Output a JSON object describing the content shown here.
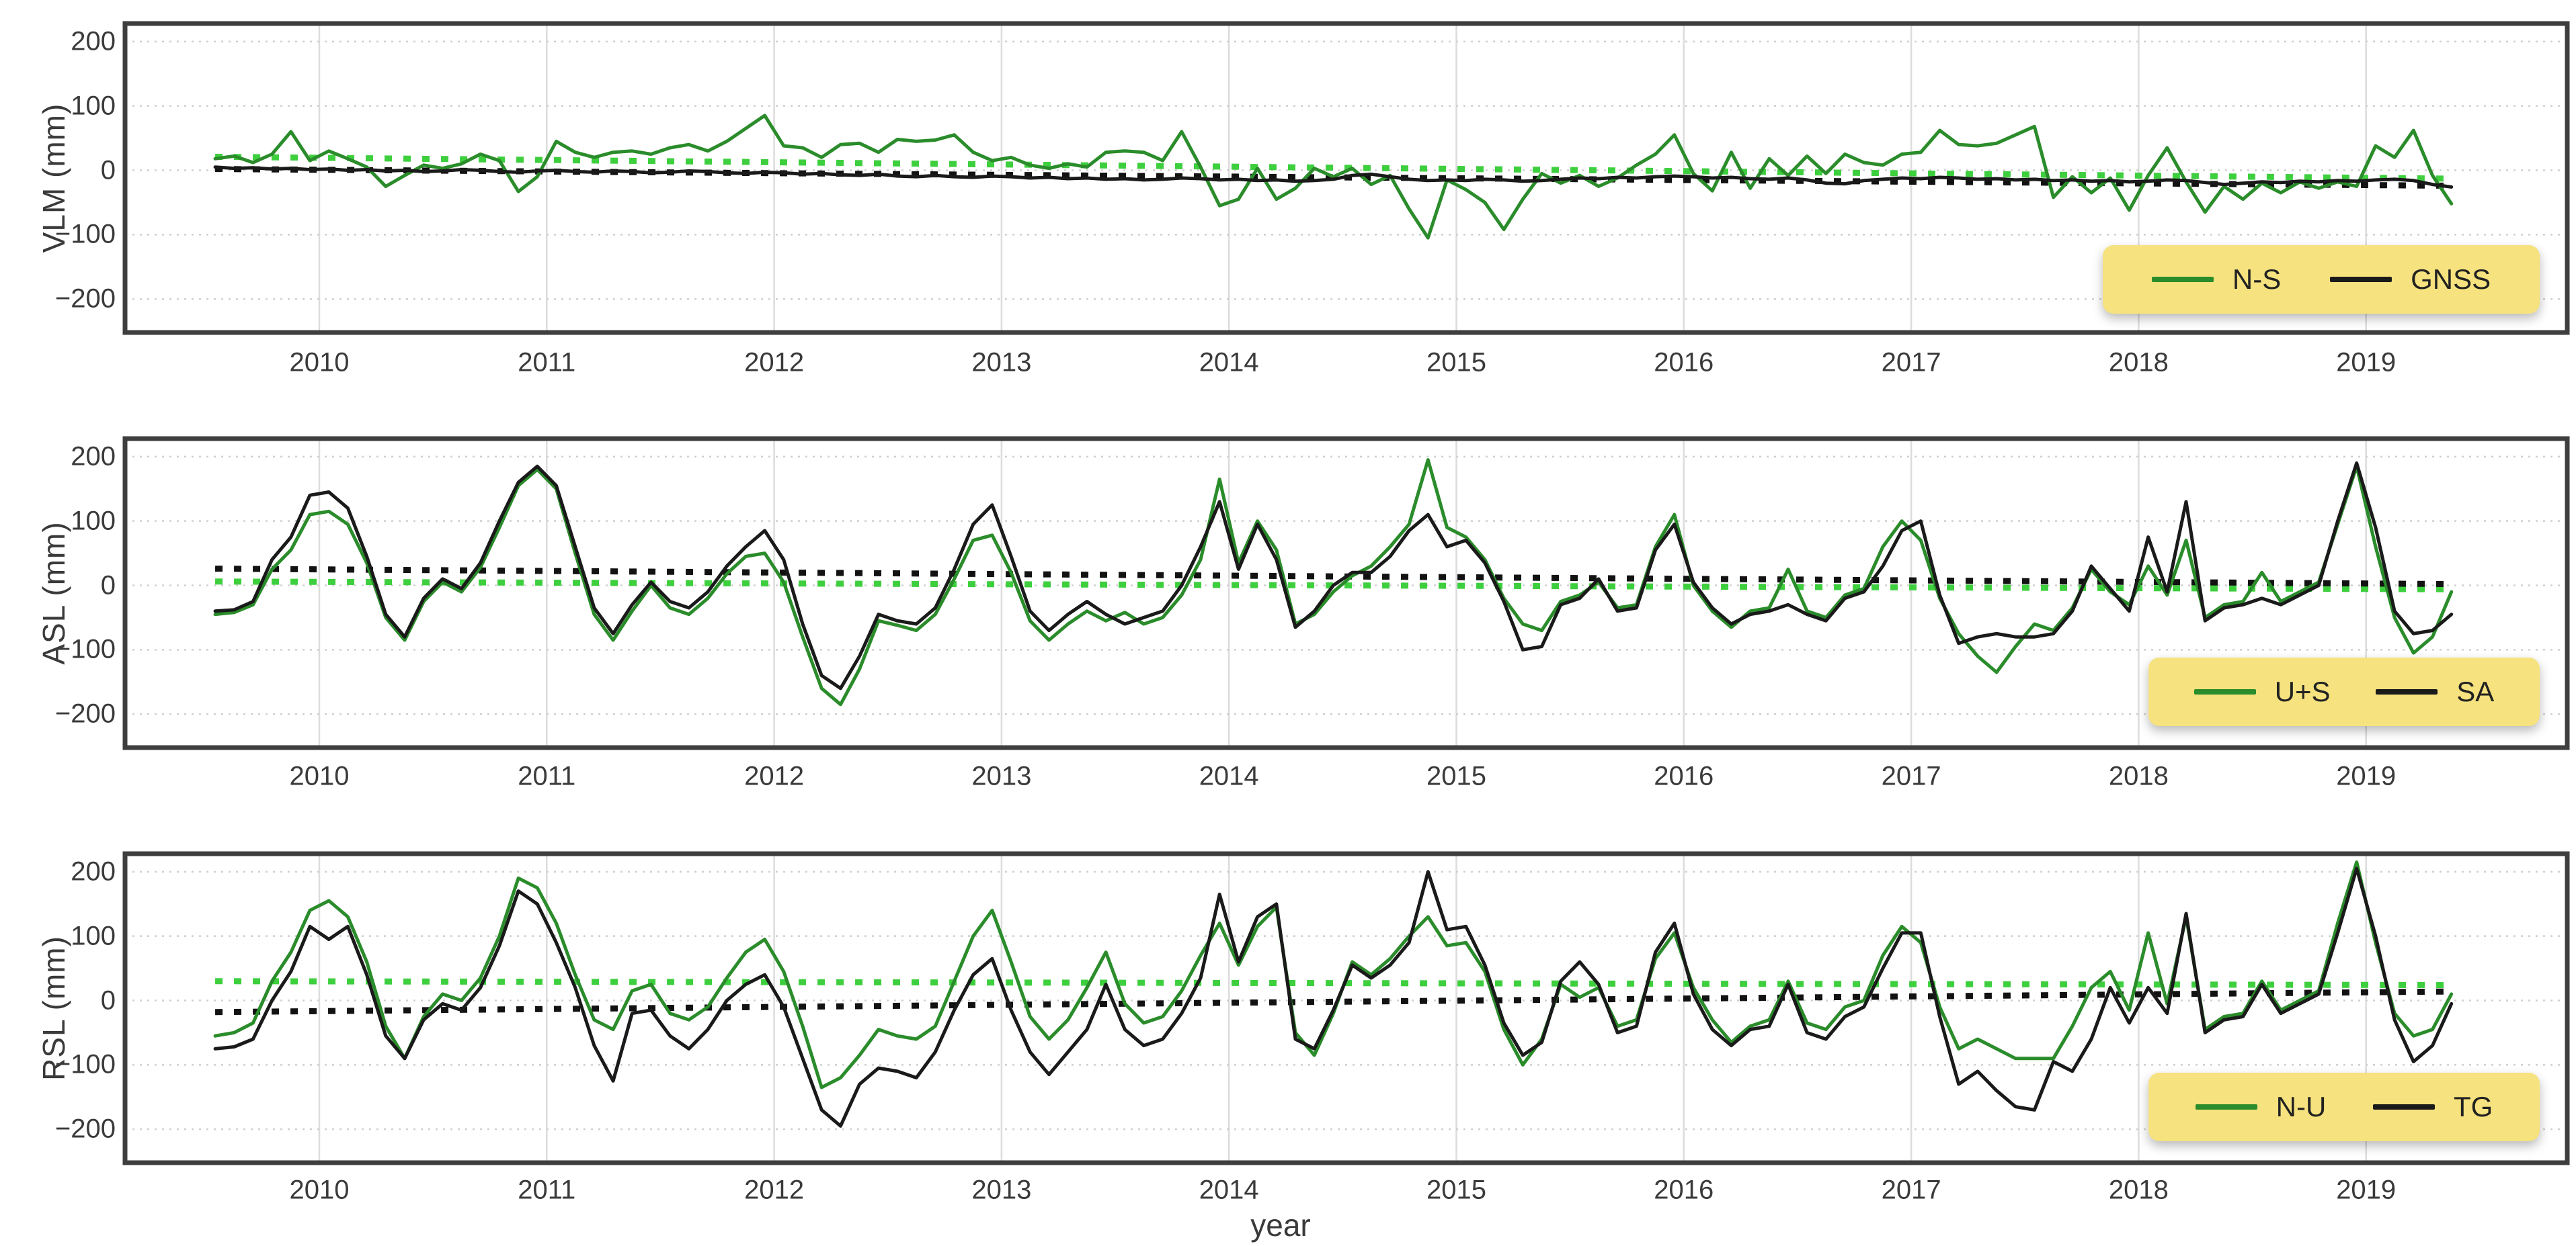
{
  "figure": {
    "xlabel": "year",
    "palette": {
      "green_line": "#2a8c2a",
      "green_trend": "#3ecf3e",
      "black_line": "#1a1a1a",
      "black_trend": "#121212",
      "grid_vertical": "#dcdcdc",
      "grid_horizontal_dotted": "#cfcfcf",
      "panel_border": "#3e3e3e",
      "legend_bg": "#f6e27e",
      "text": "#3a3a3a",
      "background": "#ffffff"
    },
    "x_start": 2009.542,
    "x_step": 0.083333,
    "n_points": 119
  },
  "chart_data": [
    {
      "type": "line",
      "ylabel": "VLM (mm)",
      "xlabel": "",
      "ylim": [
        -252,
        228
      ],
      "yticks": [
        200,
        100,
        0,
        -100,
        -200
      ],
      "ytick_labels": [
        "200",
        "100",
        "0",
        "−100",
        "−200"
      ],
      "xticks": [
        2010,
        2011,
        2012,
        2013,
        2014,
        2015,
        2016,
        2017,
        2018,
        2019
      ],
      "grid": true,
      "legend": {
        "position": "bottom-right-inside",
        "items": [
          {
            "label": "N-S",
            "color": "green_line"
          },
          {
            "label": "GNSS",
            "color": "black_line"
          }
        ]
      },
      "series": [
        {
          "name": "N-S",
          "color": "green_line",
          "values": [
            18,
            22,
            12,
            25,
            60,
            15,
            30,
            18,
            5,
            -25,
            -8,
            8,
            3,
            10,
            25,
            15,
            -33,
            -10,
            45,
            28,
            20,
            28,
            30,
            25,
            35,
            40,
            30,
            45,
            65,
            85,
            38,
            35,
            20,
            40,
            42,
            28,
            48,
            45,
            47,
            55,
            28,
            15,
            20,
            8,
            3,
            10,
            5,
            28,
            30,
            28,
            15,
            60,
            5,
            -55,
            -45,
            3,
            -45,
            -28,
            3,
            -10,
            3,
            -22,
            -8,
            -60,
            -105,
            -15,
            -30,
            -50,
            -92,
            -45,
            -5,
            -20,
            -8,
            -25,
            -12,
            8,
            25,
            55,
            -5,
            -32,
            28,
            -28,
            18,
            -8,
            22,
            -5,
            25,
            12,
            8,
            25,
            28,
            62,
            40,
            38,
            42,
            55,
            68,
            -42,
            -10,
            -35,
            -12,
            -62,
            -8,
            35,
            -18,
            -65,
            -25,
            -45,
            -20,
            -35,
            -18,
            -28,
            -18,
            -25,
            38,
            20,
            62,
            -8,
            -52
          ]
        },
        {
          "name": "GNSS",
          "color": "black_line",
          "values": [
            5,
            3,
            4,
            2,
            3,
            1,
            2,
            0,
            1,
            -1,
            0,
            -2,
            -1,
            1,
            0,
            -2,
            -3,
            -1,
            0,
            -2,
            -3,
            -1,
            -2,
            -4,
            -3,
            -1,
            -2,
            -4,
            -5,
            -3,
            -4,
            -6,
            -5,
            -7,
            -8,
            -6,
            -9,
            -10,
            -8,
            -10,
            -11,
            -9,
            -10,
            -12,
            -11,
            -13,
            -12,
            -14,
            -13,
            -15,
            -14,
            -12,
            -13,
            -15,
            -14,
            -16,
            -15,
            -17,
            -16,
            -14,
            -8,
            -6,
            -10,
            -14,
            -16,
            -15,
            -16,
            -14,
            -15,
            -17,
            -16,
            -14,
            -12,
            -13,
            -11,
            -12,
            -10,
            -9,
            -10,
            -12,
            -11,
            -13,
            -14,
            -12,
            -15,
            -20,
            -21,
            -16,
            -14,
            -12,
            -13,
            -11,
            -12,
            -14,
            -13,
            -15,
            -14,
            -16,
            -15,
            -17,
            -16,
            -18,
            -17,
            -15,
            -16,
            -19,
            -22,
            -20,
            -18,
            -19,
            -17,
            -18,
            -16,
            -17,
            -15,
            -14,
            -16,
            -22,
            -26
          ]
        }
      ],
      "trends": [
        {
          "name": "N-S trend",
          "color": "green_trend",
          "start_value": 21,
          "end_value": -13
        },
        {
          "name": "GNSS trend",
          "color": "black_trend",
          "start_value": 2,
          "end_value": -24
        }
      ]
    },
    {
      "type": "line",
      "ylabel": "ASL (mm)",
      "xlabel": "",
      "ylim": [
        -252,
        228
      ],
      "yticks": [
        200,
        100,
        0,
        -100,
        -200
      ],
      "ytick_labels": [
        "200",
        "100",
        "0",
        "−100",
        "−200"
      ],
      "xticks": [
        2010,
        2011,
        2012,
        2013,
        2014,
        2015,
        2016,
        2017,
        2018,
        2019
      ],
      "grid": true,
      "legend": {
        "position": "bottom-right-inside",
        "items": [
          {
            "label": "U+S",
            "color": "green_line"
          },
          {
            "label": "SA",
            "color": "black_line"
          }
        ]
      },
      "series": [
        {
          "name": "U+S",
          "color": "green_line",
          "values": [
            -45,
            -42,
            -30,
            25,
            55,
            110,
            115,
            95,
            35,
            -50,
            -85,
            -25,
            5,
            -10,
            28,
            90,
            155,
            180,
            150,
            50,
            -45,
            -85,
            -40,
            0,
            -35,
            -45,
            -20,
            18,
            45,
            50,
            5,
            -80,
            -160,
            -185,
            -130,
            -55,
            -62,
            -70,
            -45,
            10,
            70,
            78,
            20,
            -55,
            -85,
            -60,
            -40,
            -55,
            -42,
            -60,
            -50,
            -15,
            40,
            165,
            35,
            100,
            55,
            -60,
            -45,
            -10,
            15,
            30,
            60,
            95,
            195,
            90,
            75,
            40,
            -20,
            -60,
            -70,
            -25,
            -15,
            5,
            -35,
            -30,
            60,
            110,
            0,
            -40,
            -65,
            -40,
            -35,
            25,
            -40,
            -50,
            -15,
            -5,
            60,
            100,
            70,
            -20,
            -75,
            -110,
            -135,
            -95,
            -60,
            -70,
            -35,
            25,
            -10,
            -30,
            30,
            -15,
            70,
            -50,
            -30,
            -25,
            20,
            -25,
            -10,
            5,
            95,
            185,
            60,
            -50,
            -105,
            -80,
            -10
          ]
        },
        {
          "name": "SA",
          "color": "black_line",
          "values": [
            -40,
            -38,
            -25,
            40,
            75,
            140,
            145,
            120,
            45,
            -45,
            -80,
            -20,
            10,
            -5,
            35,
            100,
            160,
            185,
            155,
            60,
            -35,
            -75,
            -30,
            5,
            -25,
            -35,
            -10,
            30,
            60,
            85,
            40,
            -60,
            -140,
            -160,
            -110,
            -45,
            -55,
            -60,
            -35,
            25,
            95,
            125,
            45,
            -40,
            -70,
            -45,
            -25,
            -45,
            -60,
            -50,
            -40,
            0,
            60,
            130,
            25,
            95,
            40,
            -65,
            -40,
            0,
            20,
            20,
            45,
            85,
            110,
            60,
            70,
            35,
            -25,
            -100,
            -95,
            -30,
            -20,
            10,
            -40,
            -35,
            55,
            95,
            5,
            -35,
            -60,
            -45,
            -40,
            -30,
            -45,
            -55,
            -20,
            -10,
            30,
            85,
            100,
            -15,
            -90,
            -80,
            -75,
            -80,
            -80,
            -75,
            -40,
            30,
            -5,
            -40,
            75,
            -10,
            130,
            -55,
            -35,
            -30,
            -20,
            -30,
            -15,
            0,
            100,
            190,
            90,
            -40,
            -75,
            -70,
            -45
          ]
        }
      ],
      "trends": [
        {
          "name": "U+S trend",
          "color": "green_trend",
          "start_value": 6,
          "end_value": -6
        },
        {
          "name": "SA trend",
          "color": "black_trend",
          "start_value": 26,
          "end_value": 2
        }
      ]
    },
    {
      "type": "line",
      "ylabel": "RSL (mm)",
      "xlabel": "year",
      "ylim": [
        -252,
        228
      ],
      "yticks": [
        200,
        100,
        0,
        -100,
        -200
      ],
      "ytick_labels": [
        "200",
        "100",
        "0",
        "−100",
        "−200"
      ],
      "xticks": [
        2010,
        2011,
        2012,
        2013,
        2014,
        2015,
        2016,
        2017,
        2018,
        2019
      ],
      "grid": true,
      "legend": {
        "position": "bottom-right-inside",
        "items": [
          {
            "label": "N-U",
            "color": "green_line"
          },
          {
            "label": "TG",
            "color": "black_line"
          }
        ]
      },
      "series": [
        {
          "name": "N-U",
          "color": "green_line",
          "values": [
            -55,
            -50,
            -35,
            30,
            75,
            140,
            155,
            130,
            60,
            -40,
            -90,
            -25,
            10,
            0,
            35,
            100,
            190,
            175,
            120,
            40,
            -30,
            -45,
            15,
            25,
            -20,
            -30,
            -10,
            35,
            75,
            95,
            45,
            -40,
            -135,
            -120,
            -85,
            -45,
            -55,
            -60,
            -40,
            30,
            100,
            140,
            60,
            -25,
            -60,
            -30,
            20,
            75,
            -5,
            -35,
            -25,
            15,
            70,
            120,
            55,
            115,
            145,
            -50,
            -85,
            -20,
            60,
            40,
            65,
            100,
            130,
            85,
            90,
            45,
            -45,
            -100,
            -60,
            25,
            5,
            20,
            -40,
            -30,
            65,
            105,
            20,
            -30,
            -65,
            -40,
            -30,
            30,
            -35,
            -45,
            -10,
            0,
            70,
            115,
            90,
            -10,
            -75,
            -60,
            -75,
            -90,
            -90,
            -90,
            -40,
            20,
            45,
            -15,
            105,
            -5,
            130,
            -45,
            -25,
            -20,
            30,
            -15,
            0,
            15,
            120,
            215,
            90,
            -20,
            -55,
            -45,
            10
          ]
        },
        {
          "name": "TG",
          "color": "black_line",
          "values": [
            -75,
            -72,
            -60,
            0,
            45,
            115,
            95,
            115,
            40,
            -55,
            -90,
            -30,
            -5,
            -15,
            20,
            85,
            170,
            150,
            90,
            20,
            -70,
            -125,
            -20,
            -15,
            -55,
            -75,
            -45,
            0,
            25,
            40,
            -10,
            -90,
            -170,
            -195,
            -130,
            -105,
            -110,
            -120,
            -80,
            -15,
            40,
            65,
            -15,
            -80,
            -115,
            -80,
            -45,
            25,
            -45,
            -70,
            -60,
            -20,
            35,
            165,
            60,
            130,
            150,
            -60,
            -75,
            -15,
            55,
            35,
            55,
            90,
            200,
            110,
            115,
            55,
            -35,
            -85,
            -65,
            30,
            60,
            25,
            -50,
            -40,
            75,
            120,
            10,
            -45,
            -70,
            -45,
            -40,
            25,
            -50,
            -60,
            -25,
            -10,
            50,
            105,
            105,
            -25,
            -130,
            -110,
            -140,
            -165,
            -170,
            -95,
            -110,
            -60,
            20,
            -35,
            20,
            -20,
            135,
            -50,
            -30,
            -25,
            25,
            -20,
            -5,
            10,
            105,
            205,
            100,
            -30,
            -95,
            -70,
            -5
          ]
        }
      ],
      "trends": [
        {
          "name": "N-U trend",
          "color": "green_trend",
          "start_value": 30,
          "end_value": 24
        },
        {
          "name": "TG trend",
          "color": "black_trend",
          "start_value": -18,
          "end_value": 14
        }
      ]
    }
  ]
}
